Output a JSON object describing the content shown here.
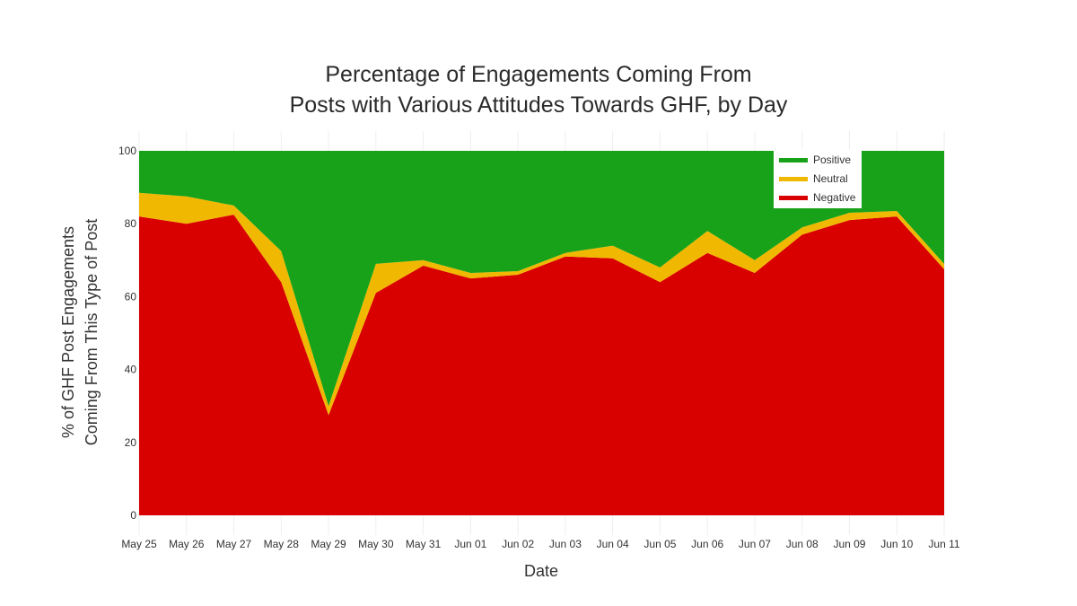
{
  "chart_data": {
    "type": "area",
    "stacked": true,
    "title": "Percentage of Engagements Coming From Posts with Various Attitudes Towards GHF, by Day",
    "title_lines": [
      "Percentage of Engagements Coming From",
      "Posts with Various Attitudes Towards GHF, by Day"
    ],
    "xlabel": "Date",
    "ylabel": "% of GHF Post Engagements Coming From This Type of Post",
    "ylabel_lines": [
      "% of GHF Post Engagements",
      "Coming From This Type of Post"
    ],
    "ylim": [
      0,
      100
    ],
    "yticks": [
      0,
      20,
      40,
      60,
      80,
      100
    ],
    "grid": true,
    "legend_position": "top-right-inside",
    "categories": [
      "May 25",
      "May 26",
      "May 27",
      "May 28",
      "May 29",
      "May 30",
      "May 31",
      "Jun 01",
      "Jun 02",
      "Jun 03",
      "Jun 04",
      "Jun 05",
      "Jun 06",
      "Jun 07",
      "Jun 08",
      "Jun 09",
      "Jun 10",
      "Jun 11"
    ],
    "series": [
      {
        "name": "Negative",
        "color": "#d90000",
        "values": [
          82,
          80,
          82.5,
          64,
          27.5,
          61,
          68.5,
          65,
          66,
          71,
          70.5,
          64,
          72,
          66.5,
          77,
          81,
          82,
          67.5
        ]
      },
      {
        "name": "Neutral",
        "color": "#f0b800",
        "values": [
          6.5,
          7.5,
          2.5,
          8.5,
          2.5,
          8,
          1.5,
          1.5,
          1,
          1,
          3.5,
          4,
          6,
          3.5,
          2,
          2,
          1.5,
          1.5
        ]
      },
      {
        "name": "Positive",
        "color": "#17a21a",
        "values": [
          11.5,
          12.5,
          15,
          27.5,
          70,
          31,
          30,
          33.5,
          33,
          28,
          26,
          32,
          22,
          30,
          21,
          17,
          16.5,
          31
        ]
      }
    ]
  },
  "legend": {
    "items": [
      {
        "label": "Positive",
        "color": "#17a21a"
      },
      {
        "label": "Neutral",
        "color": "#f0b800"
      },
      {
        "label": "Negative",
        "color": "#d90000"
      }
    ]
  }
}
